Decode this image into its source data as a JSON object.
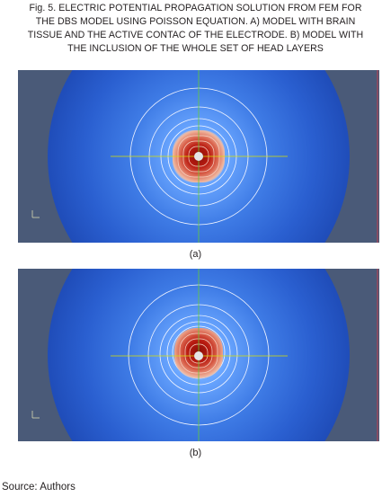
{
  "caption": {
    "lines": [
      "Fig. 5. ELECTRIC POTENTIAL PROPAGATION SOLUTION FROM FEM FOR",
      "THE DBS MODEL USING POISSON EQUATION. A) MODEL WITH BRAIN",
      "TISSUE AND THE ACTIVE CONTAC OF THE ELECTRODE. B) MODEL WITH",
      "THE INCLUSION OF THE WHOLE SET OF HEAD LAYERS"
    ]
  },
  "panels": [
    {
      "id": "a",
      "label": "(a)"
    },
    {
      "id": "b",
      "label": "(b)"
    }
  ],
  "source": "Source: Authors",
  "colors": {
    "background_gray": "#4a5a78",
    "field_outer": "#1f4fbf",
    "field_inner": "#5fa0ff",
    "hotspot": "#b81a10",
    "contour": "#f4f6ff",
    "axis_line": "#d8e000"
  }
}
